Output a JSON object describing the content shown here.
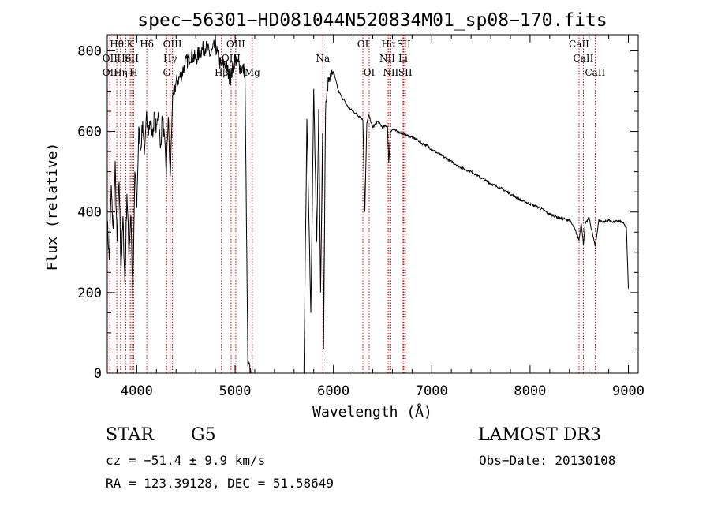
{
  "chart_data": {
    "type": "line",
    "title": "spec−56301−HD081044N520834M01_sp08−170.fits",
    "xlabel": "Wavelength (Å)",
    "ylabel": "Flux (relative)",
    "xlim": [
      3700,
      9100
    ],
    "ylim": [
      0,
      840
    ],
    "x_ticks": [
      4000,
      5000,
      6000,
      7000,
      8000,
      9000
    ],
    "y_ticks": [
      0,
      200,
      400,
      600,
      800
    ],
    "grid": false,
    "line_color": "#000000",
    "marker_color": "#cc0000",
    "series": [
      {
        "x": [
          3700,
          3720,
          3740,
          3760,
          3780,
          3800,
          3820,
          3840,
          3860,
          3880,
          3900,
          3920,
          3940,
          3960,
          3980,
          4000,
          4020,
          4040,
          4060,
          4080,
          4100,
          4120,
          4140,
          4160,
          4180,
          4200,
          4220,
          4240,
          4260,
          4280,
          4300,
          4320,
          4340,
          4360,
          4380,
          4400,
          4450,
          4500,
          4550,
          4600,
          4650,
          4700,
          4750,
          4800,
          4830,
          4861,
          4900,
          4950,
          5000,
          5050,
          5100,
          5130,
          5160,
          5175,
          5700,
          5730,
          5750,
          5770,
          5800,
          5830,
          5850,
          5870,
          5890,
          5900,
          5920,
          5950,
          6000,
          6050,
          6100,
          6150,
          6200,
          6250,
          6300,
          6320,
          6340,
          6360,
          6400,
          6450,
          6500,
          6550,
          6563,
          6580,
          6600,
          6650,
          6700,
          6750,
          6800,
          6850,
          6900,
          6950,
          7000,
          7100,
          7200,
          7300,
          7400,
          7500,
          7600,
          7700,
          7800,
          7900,
          8000,
          8100,
          8200,
          8300,
          8400,
          8450,
          8498,
          8520,
          8542,
          8560,
          8600,
          8662,
          8700,
          8750,
          8800,
          8850,
          8900,
          8950,
          8980,
          9000
        ],
        "y": [
          380,
          280,
          460,
          350,
          510,
          320,
          480,
          260,
          380,
          220,
          450,
          300,
          400,
          180,
          500,
          420,
          600,
          560,
          620,
          540,
          640,
          610,
          620,
          590,
          640,
          600,
          660,
          550,
          640,
          580,
          500,
          640,
          480,
          660,
          700,
          720,
          740,
          770,
          790,
          780,
          800,
          810,
          790,
          815,
          780,
          760,
          770,
          730,
          780,
          760,
          750,
          20,
          0,
          0,
          0,
          620,
          400,
          150,
          700,
          320,
          650,
          200,
          600,
          70,
          660,
          730,
          750,
          700,
          680,
          660,
          650,
          640,
          630,
          400,
          620,
          640,
          610,
          625,
          610,
          615,
          520,
          600,
          605,
          600,
          595,
          590,
          585,
          580,
          570,
          565,
          555,
          540,
          525,
          510,
          500,
          485,
          470,
          460,
          445,
          430,
          420,
          410,
          395,
          385,
          380,
          360,
          330,
          375,
          320,
          370,
          385,
          315,
          380,
          375,
          380,
          375,
          378,
          372,
          360,
          210
        ]
      }
    ],
    "lines": [
      {
        "label": "OII",
        "x": 3727,
        "row": 2
      },
      {
        "label": "OII",
        "x": 3727,
        "row": 3
      },
      {
        "label": "Hθ",
        "x": 3797,
        "row": 1
      },
      {
        "label": "Hη",
        "x": 3835,
        "row": 3
      },
      {
        "label": "HeI",
        "x": 3889,
        "row": 2
      },
      {
        "label": "K",
        "x": 3934,
        "row": 1
      },
      {
        "label": "SII",
        "x": 3950,
        "row": 2
      },
      {
        "label": "H",
        "x": 3968,
        "row": 3
      },
      {
        "label": "Hδ",
        "x": 4102,
        "row": 1
      },
      {
        "label": "G",
        "x": 4304,
        "row": 3
      },
      {
        "label": "OIII",
        "x": 4363,
        "row": 1
      },
      {
        "label": "Hγ",
        "x": 4340,
        "row": 2
      },
      {
        "label": "Hβ",
        "x": 4861,
        "row": 3
      },
      {
        "label": "OIII",
        "x": 4959,
        "row": 2
      },
      {
        "label": "OIII",
        "x": 5007,
        "row": 1
      },
      {
        "label": "Mg",
        "x": 5175,
        "row": 3
      },
      {
        "label": "Na",
        "x": 5893,
        "row": 2
      },
      {
        "label": "OI",
        "x": 6300,
        "row": 1
      },
      {
        "label": "OI",
        "x": 6364,
        "row": 3
      },
      {
        "label": "NII",
        "x": 6548,
        "row": 2
      },
      {
        "label": "Hα",
        "x": 6563,
        "row": 1
      },
      {
        "label": "NII",
        "x": 6583,
        "row": 3
      },
      {
        "label": "SII",
        "x": 6716,
        "row": 1
      },
      {
        "label": "Li",
        "x": 6708,
        "row": 2
      },
      {
        "label": "SII",
        "x": 6731,
        "row": 3
      },
      {
        "label": "CaII",
        "x": 8498,
        "row": 1
      },
      {
        "label": "CaII",
        "x": 8542,
        "row": 2
      },
      {
        "label": "CaII",
        "x": 8662,
        "row": 3
      }
    ]
  },
  "info": {
    "class": "STAR",
    "subclass": "G5",
    "survey": "LAMOST DR3",
    "cz": "cz = −51.4 ± 9.9 km/s",
    "obs_date": "Obs−Date: 20130108",
    "coords": "RA = 123.39128, DEC =  51.58649"
  }
}
